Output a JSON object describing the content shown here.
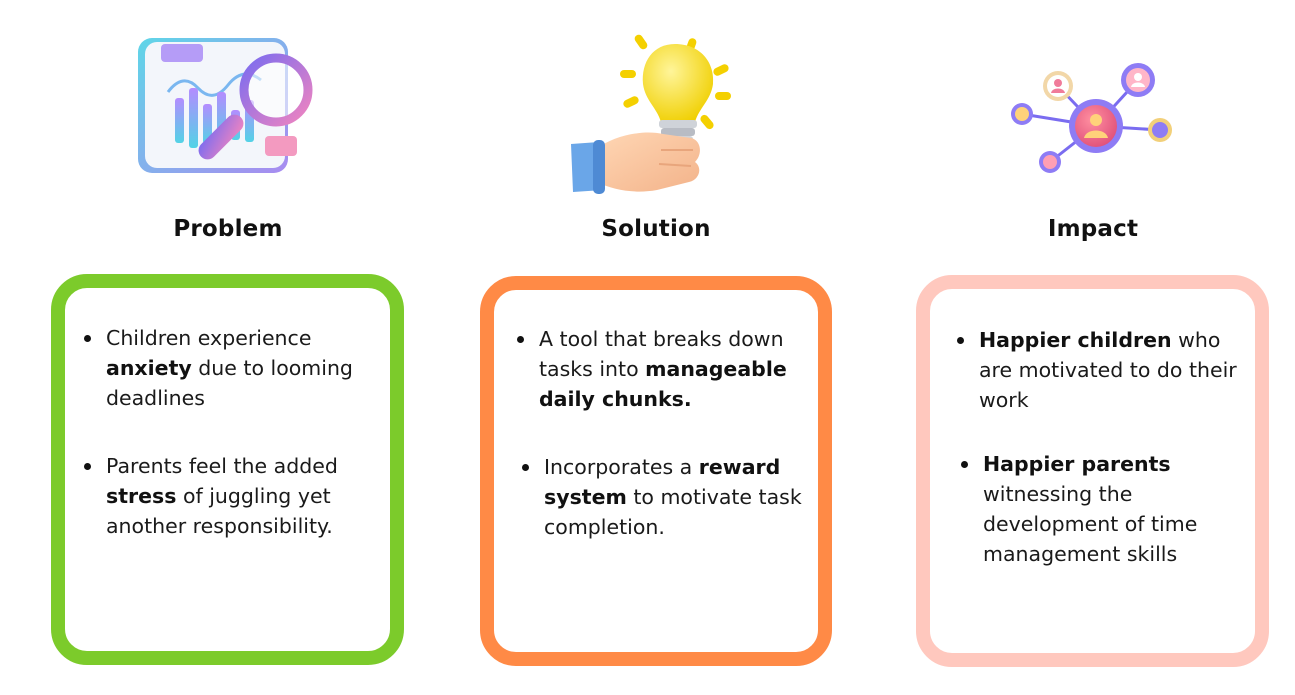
{
  "colors": {
    "problem_border": "#7ccb2b",
    "solution_border": "#ff8a46",
    "impact_border": "#ffc8be"
  },
  "problem": {
    "icon": "magnifier-chart-icon",
    "heading": "Problem",
    "bullet1": {
      "t1": "Children experience ",
      "b1": "anxiety",
      "t2": " due to looming deadlines"
    },
    "bullet2": {
      "t1": "Parents feel the added ",
      "b1": "stress",
      "t2": " of juggling yet another responsibility."
    }
  },
  "solution": {
    "icon": "hand-lightbulb-icon",
    "heading": "Solution",
    "bullet1": {
      "t1": "A tool that breaks down tasks into ",
      "b1": "manageable daily chunks."
    },
    "bullet2": {
      "t1": "Incorporates a ",
      "b1": "reward system",
      "t2": " to motivate task completion."
    }
  },
  "impact": {
    "icon": "people-network-icon",
    "heading": "Impact",
    "bullet1": {
      "b1": "Happier children",
      "t1": " who are motivated to do their work"
    },
    "bullet2": {
      "b1": "Happier parents",
      "t1": " witnessing the development of time management skills"
    }
  }
}
